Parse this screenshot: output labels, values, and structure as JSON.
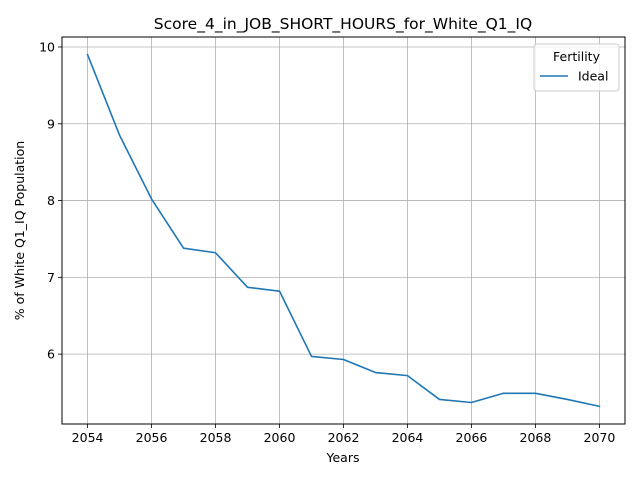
{
  "chart_data": {
    "type": "line",
    "title": "Score_4_in_JOB_SHORT_HOURS_for_White_Q1_IQ",
    "xlabel": "Years",
    "ylabel": "% of White Q1_IQ Population",
    "x": [
      2054,
      2055,
      2056,
      2057,
      2058,
      2059,
      2060,
      2061,
      2062,
      2063,
      2064,
      2065,
      2066,
      2067,
      2068,
      2069,
      2070
    ],
    "series": [
      {
        "name": "Ideal",
        "color": "#1f77b4",
        "values": [
          9.9,
          8.85,
          8.02,
          7.38,
          7.32,
          6.87,
          6.82,
          5.97,
          5.93,
          5.76,
          5.72,
          5.41,
          5.37,
          5.49,
          5.49,
          5.41,
          5.32
        ]
      }
    ],
    "xticks": [
      "2054",
      "2056",
      "2058",
      "2060",
      "2062",
      "2064",
      "2066",
      "2068",
      "2070"
    ],
    "yticks": [
      "6",
      "7",
      "8",
      "9",
      "10"
    ],
    "xlim": [
      2053.2,
      2070.8
    ],
    "ylim": [
      5.09,
      10.13
    ],
    "grid": true,
    "legend": {
      "title": "Fertility",
      "position": "top-right"
    }
  }
}
